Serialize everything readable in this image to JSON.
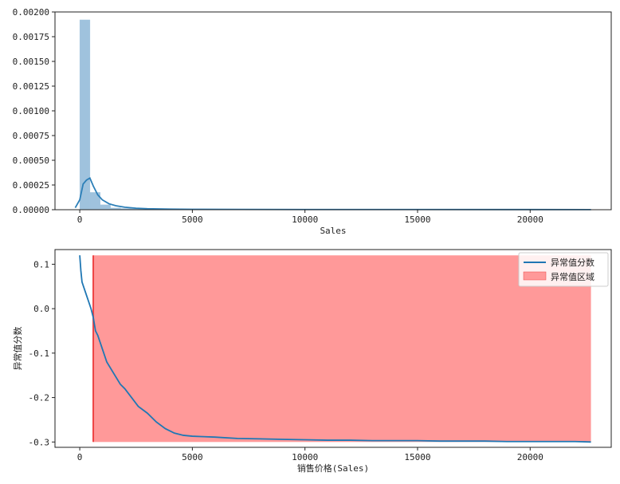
{
  "chart_data": [
    {
      "type": "bar",
      "subtype": "histogram-with-kde",
      "xlabel": "Sales",
      "ylabel": "",
      "xlim": [
        -1100,
        23600
      ],
      "ylim": [
        0,
        0.002
      ],
      "xticks": [
        0,
        5000,
        10000,
        15000,
        20000
      ],
      "xtick_labels": [
        "0",
        "5000",
        "10000",
        "15000",
        "20000"
      ],
      "yticks": [
        0,
        0.00025,
        0.0005,
        0.00075,
        0.001,
        0.00125,
        0.0015,
        0.00175,
        0.002
      ],
      "ytick_labels": [
        "0.00000",
        "0.00025",
        "0.00050",
        "0.00075",
        "0.00100",
        "0.00125",
        "0.00150",
        "0.00175",
        "0.00200"
      ],
      "bin_width": 455,
      "bins_start": 0,
      "hist_values": [
        0.00192,
        0.000175,
        5e-05,
        1.8e-05,
        1.2e-05,
        9e-06,
        6e-06,
        4e-06,
        3e-06,
        2e-06
      ],
      "kde": {
        "x": [
          -200,
          0,
          150,
          300,
          450,
          600,
          800,
          1000,
          1300,
          1600,
          2000,
          2500,
          3000,
          4000,
          5000,
          7000,
          10000,
          15000,
          20000,
          22700
        ],
        "y": [
          2e-05,
          0.0001,
          0.00026,
          0.0003,
          0.00032,
          0.00024,
          0.00015,
          0.0001,
          6e-05,
          4e-05,
          2.5e-05,
          1.5e-05,
          1e-05,
          6e-06,
          4e-06,
          3e-06,
          2e-06,
          2e-06,
          1.5e-06,
          1e-06
        ]
      },
      "colors": {
        "hist": "#9fc2dd",
        "kde": "#2c7fb8"
      },
      "grid": false
    },
    {
      "type": "line",
      "xlabel": "销售价格(Sales)",
      "ylabel": "异常值分数",
      "xlim": [
        -1100,
        23600
      ],
      "ylim": [
        -0.312,
        0.133
      ],
      "xticks": [
        0,
        5000,
        10000,
        15000,
        20000
      ],
      "xtick_labels": [
        "0",
        "5000",
        "10000",
        "15000",
        "20000"
      ],
      "yticks": [
        -0.3,
        -0.2,
        -0.1,
        0.0,
        0.1
      ],
      "ytick_labels": [
        "-0.3",
        "-0.2",
        "-0.1",
        "0.0",
        "0.1"
      ],
      "series": [
        {
          "name": "异常值分数",
          "color": "#1f77b4",
          "x": [
            0,
            50,
            100,
            200,
            300,
            400,
            500,
            550,
            600,
            700,
            800,
            1000,
            1200,
            1500,
            1800,
            2000,
            2300,
            2600,
            3000,
            3400,
            3800,
            4200,
            4600,
            5000,
            5500,
            6000,
            7000,
            8000,
            9000,
            10000,
            11000,
            12000,
            13000,
            14000,
            15000,
            16000,
            17000,
            18000,
            19000,
            20000,
            21000,
            22000,
            22700
          ],
          "y": [
            0.12,
            0.085,
            0.06,
            0.045,
            0.03,
            0.015,
            0.0,
            -0.01,
            -0.02,
            -0.05,
            -0.06,
            -0.09,
            -0.12,
            -0.145,
            -0.17,
            -0.18,
            -0.2,
            -0.22,
            -0.235,
            -0.255,
            -0.27,
            -0.28,
            -0.285,
            -0.287,
            -0.288,
            -0.289,
            -0.292,
            -0.293,
            -0.294,
            -0.295,
            -0.296,
            -0.296,
            -0.297,
            -0.297,
            -0.297,
            -0.298,
            -0.298,
            -0.298,
            -0.299,
            -0.299,
            -0.299,
            -0.299,
            -0.3
          ]
        }
      ],
      "region": {
        "name": "异常值区域",
        "x_start": 600,
        "x_end": 22700,
        "y_min": -0.3,
        "y_max": 0.12,
        "fill_color": "#ff9999",
        "edge_color": "#ee4444"
      },
      "legend": {
        "position": "top-right",
        "entries": [
          "异常值分数",
          "异常值区域"
        ]
      },
      "grid": false
    }
  ]
}
